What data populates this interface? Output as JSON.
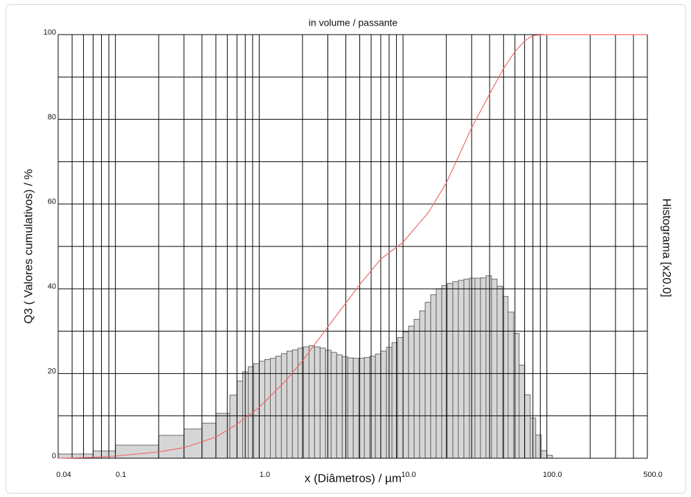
{
  "chart_data": {
    "type": "histogram",
    "title": "in volume / passante",
    "x_label": "x (Diâmetros) / µm",
    "y_label": "Q3 ( Valores cumulativos) / %",
    "y2_label": "Histograma [x20.0]",
    "xscale": "log",
    "xlim": [
      0.04,
      500
    ],
    "ylim": [
      0,
      100
    ],
    "xticks": [
      {
        "value": 0.04,
        "label": "0.04"
      },
      0.1,
      {
        "value": 1,
        "label": "1.0"
      },
      {
        "value": 10,
        "label": "10.0"
      },
      {
        "value": 100,
        "label": "100.0"
      },
      {
        "value": 500,
        "label": "500.0"
      }
    ],
    "yticks": [
      0,
      20,
      40,
      60,
      80,
      100
    ],
    "x_minor_ticks": [
      0.05,
      0.06,
      0.07,
      0.08,
      0.09,
      0.2,
      0.3,
      0.4,
      0.5,
      0.6,
      0.7,
      0.8,
      0.9,
      2,
      3,
      4,
      5,
      6,
      7,
      8,
      9,
      20,
      30,
      40,
      50,
      60,
      70,
      80,
      90,
      200,
      300,
      400
    ],
    "y_minor_ticks": [
      10,
      30,
      50,
      70,
      90
    ],
    "grid": true,
    "color": "#d6d6d6",
    "edge_color": "#4a4a4a",
    "bins": [
      0.04,
      0.07,
      0.1,
      0.2,
      0.3,
      0.4,
      0.5,
      0.625,
      0.7017,
      0.7667,
      0.8377,
      0.9153,
      1.0,
      1.093,
      1.194,
      1.304,
      1.425,
      1.557,
      1.701,
      1.859,
      2.031,
      2.219,
      2.424,
      2.649,
      2.894,
      3.162,
      3.455,
      3.775,
      4.125,
      4.507,
      4.924,
      5.38,
      5.878,
      6.423,
      7.017,
      7.667,
      8.377,
      9.153,
      10.0,
      10.93,
      11.94,
      13.04,
      14.25,
      15.57,
      17.01,
      18.59,
      20.31,
      22.19,
      24.24,
      26.49,
      28.94,
      31.62,
      34.55,
      37.75,
      41.25,
      45.07,
      49.24,
      53.8,
      58.78,
      64.23,
      70.17,
      76.67,
      83.77,
      91.53,
      100.0,
      109.3
    ],
    "counts": [
      1.0,
      1.7,
      3.1,
      5.4,
      6.9,
      8.3,
      10.6,
      14.9,
      18.2,
      20.4,
      21.6,
      22.3,
      22.9,
      23.3,
      23.6,
      24.1,
      24.7,
      25.3,
      25.6,
      26.0,
      26.3,
      26.6,
      26.3,
      26.0,
      25.5,
      25.0,
      24.4,
      24.0,
      23.7,
      23.6,
      23.6,
      23.8,
      24.1,
      24.6,
      25.3,
      26.2,
      27.3,
      28.5,
      29.8,
      31.2,
      32.8,
      34.8,
      36.8,
      38.6,
      40.0,
      40.8,
      41.3,
      41.7,
      42.0,
      42.3,
      42.5,
      42.5,
      42.6,
      43.1,
      42.3,
      40.6,
      38.2,
      34.5,
      29.5,
      22.0,
      15.0,
      9.5,
      5.5,
      1.8,
      0.7
    ],
    "cumulative": {
      "type": "line",
      "color": "#f06868",
      "x": [
        0.04,
        0.07,
        0.1,
        0.2,
        0.3,
        0.5,
        0.7,
        1.0,
        1.5,
        2,
        3,
        5,
        7,
        10,
        15,
        20,
        30,
        40,
        50,
        60,
        70,
        80,
        100,
        500
      ],
      "values": [
        0,
        0.2,
        0.5,
        1.5,
        2.5,
        5,
        8,
        12,
        18,
        23,
        31,
        41,
        47,
        51,
        58,
        65,
        78,
        86,
        92,
        96,
        98.5,
        99.8,
        100,
        100
      ]
    }
  }
}
